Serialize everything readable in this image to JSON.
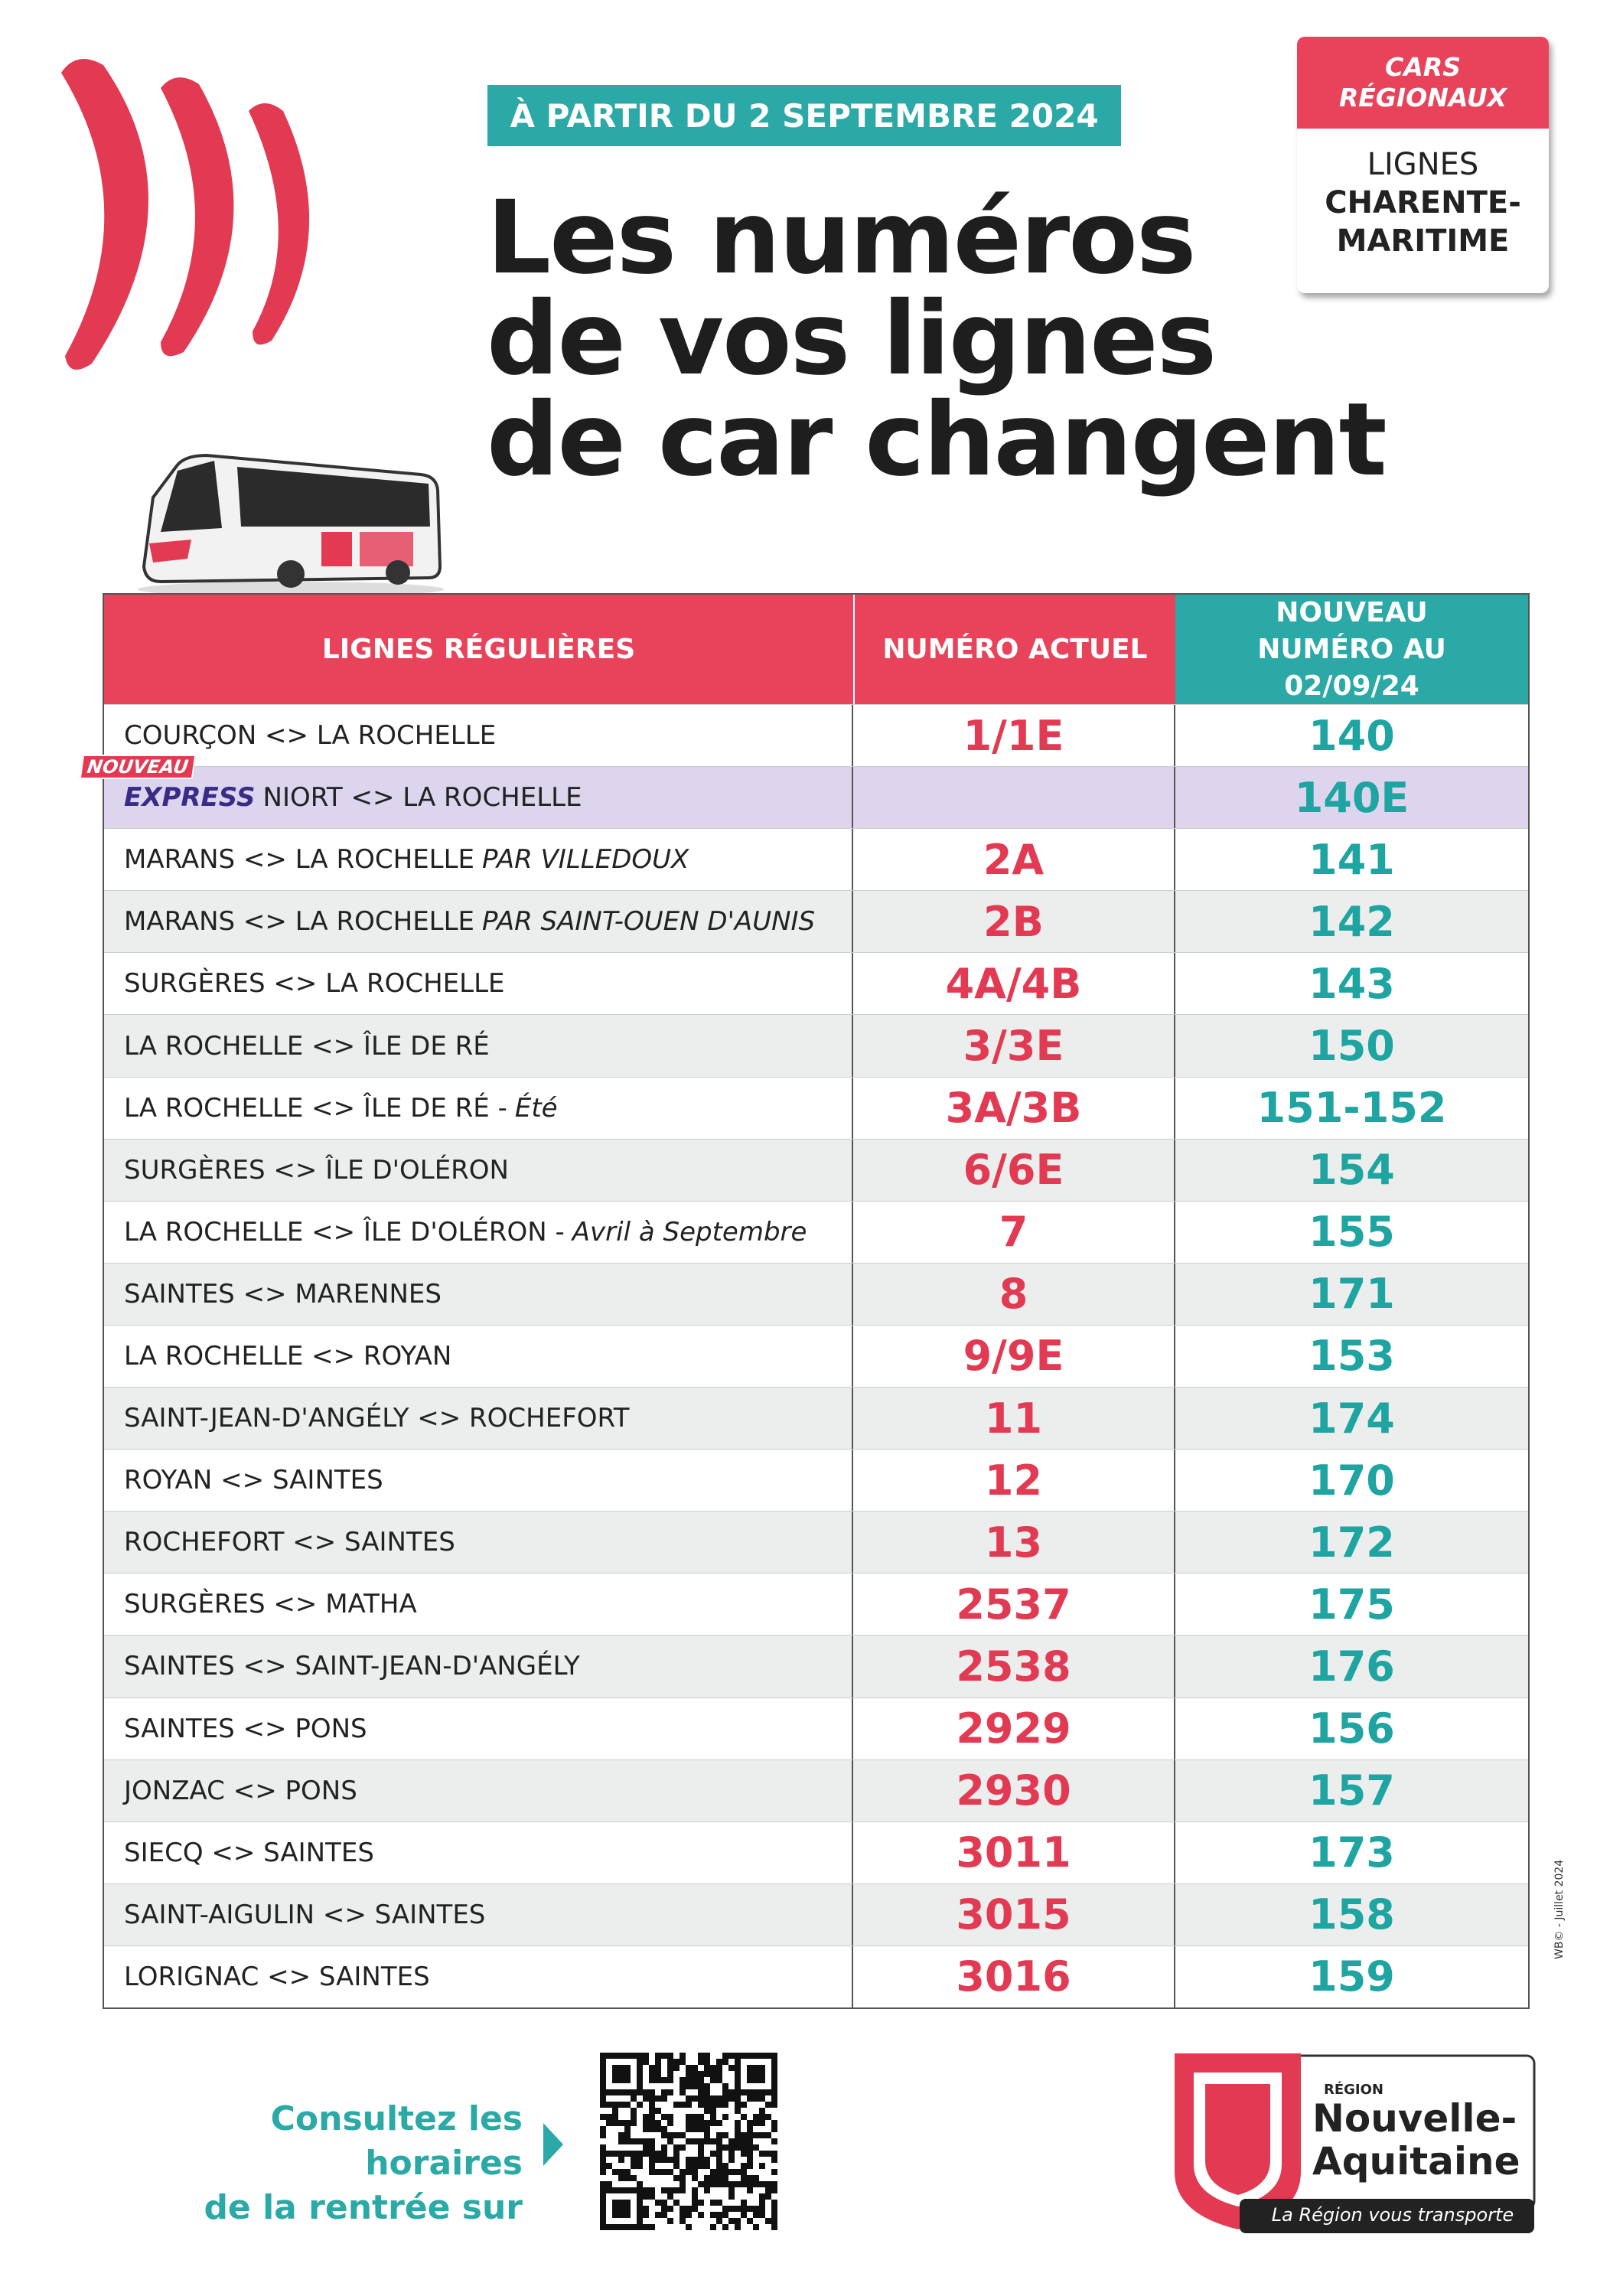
{
  "header": {
    "date_banner": "À PARTIR DU 2 SEPTEMBRE 2024",
    "title": [
      "Les numéros",
      "de vos lignes",
      "de car changent"
    ]
  },
  "badge": {
    "top": [
      "CARS",
      "RÉGIONAUX"
    ],
    "bottom": [
      "LIGNES",
      "CHARENTE-",
      "MARITIME"
    ]
  },
  "table": {
    "headers": [
      "LIGNES RÉGULIÈRES",
      "NUMÉRO ACTUEL",
      "NOUVEAU NUMÉRO AU 02/09/24"
    ],
    "rows": [
      {
        "route": "COURÇON <> LA ROCHELLE",
        "current": "1/1E",
        "new": "140"
      },
      {
        "tag": "NOUVEAU",
        "prefix": "EXPRESS",
        "route": "NIORT <> LA ROCHELLE",
        "current": null,
        "new": "140E"
      },
      {
        "route": "MARANS <> LA ROCHELLE",
        "note": "PAR VILLEDOUX",
        "current": "2A",
        "new": "141"
      },
      {
        "route": "MARANS <> LA ROCHELLE",
        "note": "PAR SAINT-OUEN D'AUNIS",
        "current": "2B",
        "new": "142"
      },
      {
        "route": "SURGÈRES <> LA ROCHELLE",
        "current": "4A/4B",
        "new": "143"
      },
      {
        "route": "LA ROCHELLE <> ÎLE DE RÉ",
        "current": "3/3E",
        "new": "150"
      },
      {
        "route": "LA ROCHELLE <> ÎLE DE RÉ -",
        "note": "Été",
        "current": "3A/3B",
        "new": "151-152"
      },
      {
        "route": "SURGÈRES <> ÎLE D'OLÉRON",
        "current": "6/6E",
        "new": "154"
      },
      {
        "route": "LA ROCHELLE <> ÎLE D'OLÉRON -",
        "note": "Avril à Septembre",
        "current": "7",
        "new": "155"
      },
      {
        "route": "SAINTES <> MARENNES",
        "current": "8",
        "new": "171"
      },
      {
        "route": "LA ROCHELLE <> ROYAN",
        "current": "9/9E",
        "new": "153"
      },
      {
        "route": "SAINT-JEAN-D'ANGÉLY <> ROCHEFORT",
        "current": "11",
        "new": "174"
      },
      {
        "route": "ROYAN <> SAINTES",
        "current": "12",
        "new": "170"
      },
      {
        "route": "ROCHEFORT <> SAINTES",
        "current": "13",
        "new": "172"
      },
      {
        "route": "SURGÈRES <> MATHA",
        "current": "2537",
        "new": "175"
      },
      {
        "route": "SAINTES <> SAINT-JEAN-D'ANGÉLY",
        "current": "2538",
        "new": "176"
      },
      {
        "route": "SAINTES <> PONS",
        "current": "2929",
        "new": "156"
      },
      {
        "route": "JONZAC <> PONS",
        "current": "2930",
        "new": "157"
      },
      {
        "route": "SIECQ <> SAINTES",
        "current": "3011",
        "new": "173"
      },
      {
        "route": "SAINT-AIGULIN <> SAINTES",
        "current": "3015",
        "new": "158"
      },
      {
        "route": "LORIGNAC <> SAINTES",
        "current": "3016",
        "new": "159"
      }
    ]
  },
  "footer": {
    "consult": [
      "Consultez les horaires",
      "de la rentrée sur"
    ],
    "logo": {
      "region": "RÉGION",
      "name": [
        "Nouvelle-",
        "Aquitaine"
      ],
      "slogan": "La Région vous transporte"
    },
    "credit": "WB© - Juillet 2024"
  }
}
